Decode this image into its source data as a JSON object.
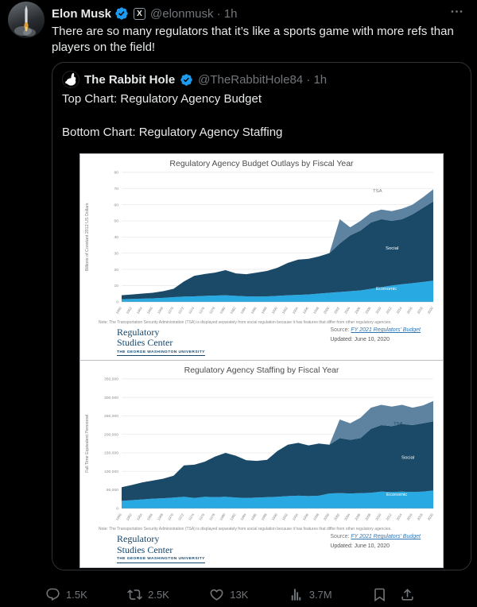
{
  "tweet": {
    "author": {
      "name": "Elon Musk",
      "meta": "@elonmusk · 1h"
    },
    "text": "There are so many regulators that it’s like a sports game with more refs than players on the field!",
    "actions": {
      "replies": "1.5K",
      "reposts": "2.5K",
      "likes": "13K",
      "views": "3.7M"
    }
  },
  "quote": {
    "author": {
      "name": "The Rabbit Hole",
      "meta": "@TheRabbitHole84 · 1h"
    },
    "line1": "Top Chart: Regulatory Agency Budget",
    "line2": "Bottom Chart: Regulatory Agency Staffing"
  },
  "chart_footer": {
    "note": "Note: The Transportation Security Administration (TSA) is displayed separately from social regulation because it has features that differ from other regulatory agencies.",
    "org_line1": "Regulatory",
    "org_line2": "Studies Center",
    "org_line3": "THE GEORGE WASHINGTON UNIVERSITY",
    "source_label": "Source:",
    "source_link": "FY 2021 Regulators' Budget",
    "updated": "Updated: June 10, 2020"
  },
  "icons": {
    "reply": "speech-bubble",
    "repost": "cycle-arrows",
    "like": "heart-outline",
    "views": "bar-chart",
    "bookmark": "bookmark-outline",
    "share": "arrow-up-from-tray",
    "more": "three-dots",
    "verified": "blue-check-seal",
    "affiliate": "X-square"
  },
  "colors": {
    "accent": "#1d9bf0",
    "border": "#2f3336",
    "text_primary": "#e7e9ea",
    "text_secondary": "#71767b",
    "economic": "#29a9e1",
    "social": "#1b4a68",
    "tsa": "#5e83a1"
  },
  "chart_data": [
    {
      "type": "area",
      "stacked": true,
      "title": "Regulatory Agency Budget Outlays by Fiscal Year",
      "ylabel": "Billions of Constant 2012 US Dollars",
      "xlabel": "",
      "ylim": [
        0,
        80
      ],
      "ytick_step": 10,
      "grid": true,
      "legend_position": "inline-labels",
      "categories": [
        "1960",
        "1962",
        "1964",
        "1966",
        "1968",
        "1970",
        "1972",
        "1974",
        "1976",
        "1978",
        "1980",
        "1982",
        "1984",
        "1986",
        "1988",
        "1990",
        "1992",
        "1994",
        "1996",
        "1998",
        "2000",
        "2002",
        "2004",
        "2006",
        "2008",
        "2010",
        "2012",
        "2014",
        "2016",
        "2018",
        "2020"
      ],
      "series": [
        {
          "name": "Economic",
          "color": "#29a9e1",
          "values": [
            1.5,
            1.7,
            1.9,
            2.1,
            2.4,
            2.8,
            3.2,
            3.3,
            3.6,
            3.8,
            4.0,
            3.6,
            3.3,
            3.2,
            3.3,
            3.6,
            4.0,
            4.2,
            4.5,
            5.0,
            5.5,
            6.0,
            6.5,
            7.0,
            8.0,
            9.0,
            10.0,
            10.8,
            11.5,
            12.2,
            13.0
          ]
        },
        {
          "name": "Social",
          "color": "#1b4a68",
          "values": [
            2.5,
            2.8,
            3.1,
            3.4,
            4.1,
            5.2,
            9.3,
            12.7,
            13.5,
            14.2,
            15.5,
            13.9,
            13.7,
            14.8,
            15.7,
            17.4,
            20.0,
            21.8,
            22.0,
            23.0,
            24.5,
            30.0,
            34.5,
            37.0,
            41.0,
            42.0,
            40.0,
            40.2,
            42.5,
            45.8,
            49.0
          ]
        },
        {
          "name": "TSA",
          "color": "#5e83a1",
          "values": [
            0,
            0,
            0,
            0,
            0,
            0,
            0,
            0,
            0,
            0,
            0,
            0,
            0,
            0,
            0,
            0,
            0,
            0,
            0,
            0,
            0,
            15.0,
            5.0,
            6.0,
            6.0,
            6.0,
            6.0,
            6.5,
            6.0,
            6.5,
            7.5
          ]
        }
      ]
    },
    {
      "type": "area",
      "stacked": true,
      "title": "Regulatory Agency Staffing by Fiscal Year",
      "ylabel": "Full Time Equivalent Personnel",
      "xlabel": "",
      "ylim": [
        0,
        350000
      ],
      "ytick_step": 50000,
      "grid": true,
      "legend_position": "inline-labels",
      "categories": [
        "1960",
        "1962",
        "1964",
        "1966",
        "1968",
        "1970",
        "1972",
        "1974",
        "1976",
        "1978",
        "1980",
        "1982",
        "1984",
        "1986",
        "1988",
        "1990",
        "1992",
        "1994",
        "1996",
        "1998",
        "2000",
        "2002",
        "2004",
        "2006",
        "2008",
        "2010",
        "2012",
        "2014",
        "2016",
        "2018",
        "2020"
      ],
      "series": [
        {
          "name": "Economic",
          "color": "#29a9e1",
          "values": [
            20000,
            22000,
            24000,
            26000,
            27000,
            29000,
            31000,
            28000,
            31000,
            30000,
            31000,
            29000,
            28000,
            29000,
            30000,
            31000,
            33000,
            34000,
            33000,
            34000,
            40000,
            41000,
            40000,
            41000,
            42000,
            45000,
            44000,
            45000,
            44000,
            45000,
            48000
          ]
        },
        {
          "name": "Social",
          "color": "#1b4a68",
          "values": [
            37000,
            41000,
            46000,
            49000,
            53000,
            59000,
            85000,
            90000,
            95000,
            110000,
            119000,
            113000,
            102000,
            99000,
            101000,
            124000,
            139000,
            143000,
            137000,
            141000,
            132000,
            149000,
            145000,
            149000,
            173000,
            180000,
            178000,
            183000,
            181000,
            185000,
            187000
          ]
        },
        {
          "name": "TSA",
          "color": "#5e83a1",
          "values": [
            0,
            0,
            0,
            0,
            0,
            0,
            0,
            0,
            0,
            0,
            0,
            0,
            0,
            0,
            0,
            0,
            0,
            0,
            0,
            0,
            0,
            50000,
            45000,
            55000,
            57000,
            55000,
            53000,
            52000,
            47000,
            48000,
            55000
          ]
        }
      ]
    }
  ]
}
